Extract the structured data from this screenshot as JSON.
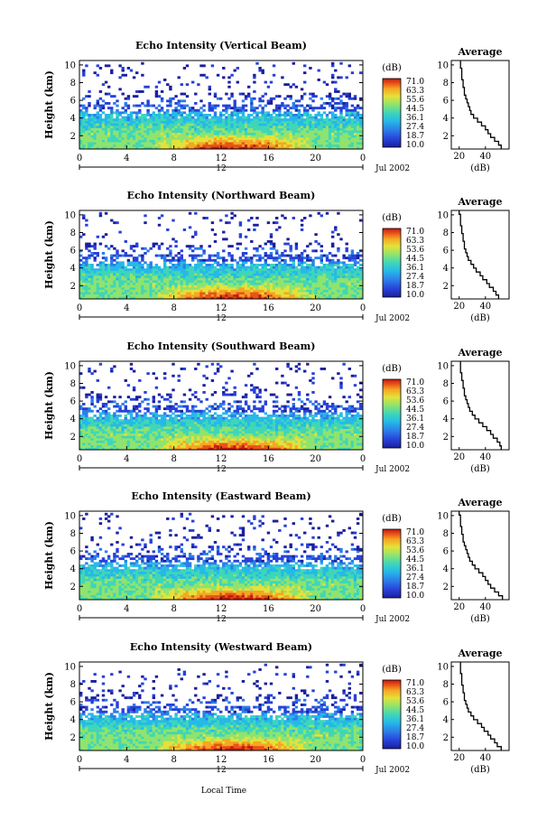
{
  "colors": {
    "scale": [
      "#1b1f9c",
      "#2741d8",
      "#2c7de8",
      "#25b9e8",
      "#3fd6b8",
      "#8fe36e",
      "#e3e23a",
      "#f5a623",
      "#e95318",
      "#c21a12"
    ]
  },
  "chart_data": [
    {
      "type": "heatmap",
      "title": "Echo Intensity (Vertical Beam)",
      "ylabel": "Height (km)",
      "xticks": [
        "0",
        "4",
        "8",
        "12",
        "16",
        "20",
        "0"
      ],
      "yticks": [
        "2",
        "4",
        "6",
        "8",
        "10"
      ],
      "xlim": [
        0,
        24
      ],
      "ylim": [
        0.5,
        10.5
      ],
      "date_axis": {
        "center": "12",
        "date": "Jul 2002"
      },
      "colorbar": {
        "unit": "(dB)",
        "ticks": [
          "71.0",
          "63.3",
          "55.6",
          "44.5",
          "36.1",
          "27.4",
          "18.7",
          "10.0"
        ]
      },
      "average": {
        "title": "Average",
        "xlabel": "(dB)",
        "xticks": [
          "20",
          "40"
        ],
        "yticks": [
          "2",
          "4",
          "6",
          "8",
          "10"
        ]
      },
      "seed": 11
    },
    {
      "type": "heatmap",
      "title": "Echo Intensity (Northward Beam)",
      "ylabel": "Height (km)",
      "xticks": [
        "0",
        "4",
        "8",
        "12",
        "16",
        "20",
        "0"
      ],
      "yticks": [
        "2",
        "4",
        "6",
        "8",
        "10"
      ],
      "xlim": [
        0,
        24
      ],
      "ylim": [
        0.5,
        10.5
      ],
      "date_axis": {
        "center": "12",
        "date": "Jul 2002"
      },
      "colorbar": {
        "unit": "(dB)",
        "ticks": [
          "71.0",
          "63.3",
          "53.6",
          "44.5",
          "36.1",
          "27.4",
          "18.7",
          "10.0"
        ]
      },
      "average": {
        "title": "Average",
        "xlabel": "(dB)",
        "xticks": [
          "20",
          "40"
        ],
        "yticks": [
          "2",
          "4",
          "6",
          "8",
          "10"
        ]
      },
      "seed": 23
    },
    {
      "type": "heatmap",
      "title": "Echo Intensity (Southward Beam)",
      "ylabel": "Height (km)",
      "xticks": [
        "0",
        "4",
        "8",
        "12",
        "16",
        "20",
        "0"
      ],
      "yticks": [
        "2",
        "4",
        "6",
        "8",
        "10"
      ],
      "xlim": [
        0,
        24
      ],
      "ylim": [
        0.5,
        10.5
      ],
      "date_axis": {
        "center": "12",
        "date": "Jul 2002"
      },
      "colorbar": {
        "unit": "(dB)",
        "ticks": [
          "71.0",
          "63.3",
          "53.6",
          "44.5",
          "36.1",
          "27.4",
          "18.7",
          "10.0"
        ]
      },
      "average": {
        "title": "Average",
        "xlabel": "(dB)",
        "xticks": [
          "20",
          "40"
        ],
        "yticks": [
          "2",
          "4",
          "6",
          "8",
          "10"
        ]
      },
      "seed": 37
    },
    {
      "type": "heatmap",
      "title": "Echo Intensity (Eastward Beam)",
      "ylabel": "Height (km)",
      "xticks": [
        "0",
        "4",
        "8",
        "12",
        "16",
        "20",
        "0"
      ],
      "yticks": [
        "2",
        "4",
        "6",
        "8",
        "10"
      ],
      "xlim": [
        0,
        24
      ],
      "ylim": [
        0.5,
        10.5
      ],
      "date_axis": {
        "center": "12",
        "date": "Jul 2002"
      },
      "colorbar": {
        "unit": "(dB)",
        "ticks": [
          "71.0",
          "63.3",
          "53.6",
          "44.5",
          "36.1",
          "27.4",
          "18.7",
          "10.0"
        ]
      },
      "average": {
        "title": "Average",
        "xlabel": "(dB)",
        "xticks": [
          "20",
          "40"
        ],
        "yticks": [
          "2",
          "4",
          "6",
          "8",
          "10"
        ]
      },
      "seed": 53
    },
    {
      "type": "heatmap",
      "title": "Echo Intensity (Westward Beam)",
      "ylabel": "Height (km)",
      "xticks": [
        "0",
        "4",
        "8",
        "12",
        "16",
        "20",
        "0"
      ],
      "yticks": [
        "2",
        "4",
        "6",
        "8",
        "10"
      ],
      "xlim": [
        0,
        24
      ],
      "ylim": [
        0.5,
        10.5
      ],
      "date_axis": {
        "center": "12",
        "date": "Jul 2002"
      },
      "colorbar": {
        "unit": "(dB)",
        "ticks": [
          "71.0",
          "63.3",
          "53.6",
          "44.5",
          "36.1",
          "27.4",
          "18.7",
          "10.0"
        ]
      },
      "average": {
        "title": "Average",
        "xlabel": "(dB)",
        "xticks": [
          "20",
          "40"
        ],
        "yticks": [
          "2",
          "4",
          "6",
          "8",
          "10"
        ]
      },
      "seed": 71
    }
  ],
  "footer": {
    "xlabel": "Local Time"
  },
  "average_profile_db": [
    [
      52,
      50,
      47,
      44,
      42,
      40,
      37,
      34,
      31,
      29,
      28,
      27,
      26,
      25,
      24,
      24,
      23,
      23,
      22,
      22,
      22,
      21,
      21
    ],
    [
      50,
      48,
      46,
      43,
      41,
      38,
      36,
      33,
      31,
      29,
      27,
      26,
      25,
      24,
      24,
      23,
      23,
      22,
      22,
      21,
      21,
      21,
      20
    ],
    [
      52,
      51,
      49,
      46,
      44,
      41,
      38,
      35,
      32,
      30,
      28,
      27,
      26,
      25,
      24,
      24,
      23,
      23,
      22,
      22,
      21,
      21,
      21
    ],
    [
      53,
      50,
      47,
      44,
      42,
      40,
      38,
      35,
      32,
      30,
      28,
      27,
      26,
      25,
      24,
      23,
      23,
      22,
      22,
      21,
      21,
      21,
      20
    ],
    [
      52,
      49,
      47,
      44,
      42,
      39,
      37,
      34,
      31,
      29,
      27,
      26,
      25,
      24,
      24,
      23,
      23,
      22,
      22,
      22,
      21,
      21,
      21
    ]
  ]
}
